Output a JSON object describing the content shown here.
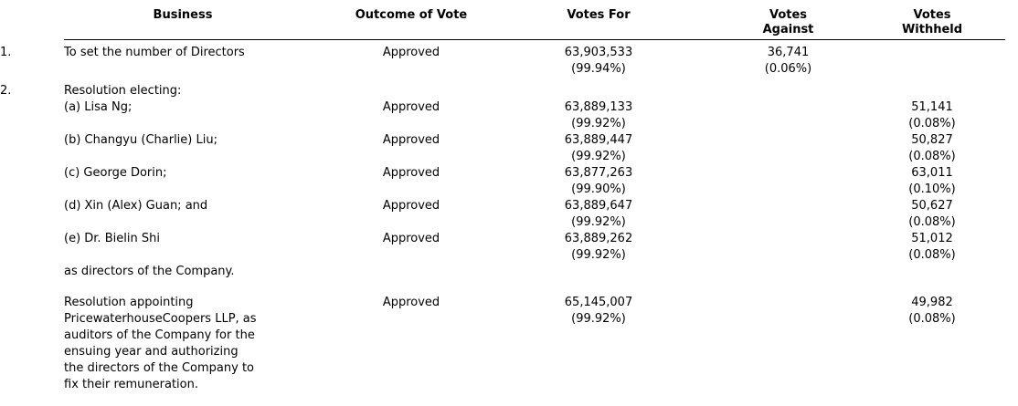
{
  "document": {
    "columns": {
      "business": "Business",
      "outcome": "Outcome of Vote",
      "votes_for": "Votes For",
      "votes_against": "Votes\nAgainst",
      "votes_withheld": "Votes\nWithheld"
    },
    "rows": [
      {
        "num": "1.",
        "business": "To set the number of Directors",
        "outcome": "Approved",
        "votes_for": "63,903,533\n(99.94%)",
        "votes_against": "36,741\n(0.06%)",
        "votes_withheld": ""
      },
      {
        "num": "2.",
        "business": "Resolution electing:",
        "outcome": "",
        "votes_for": "",
        "votes_against": "",
        "votes_withheld": ""
      },
      {
        "num": "",
        "business": "(a) Lisa Ng;",
        "outcome": "Approved",
        "votes_for": "63,889,133\n(99.92%)",
        "votes_against": "",
        "votes_withheld": "51,141\n(0.08%)"
      },
      {
        "num": "",
        "business": "(b) Changyu (Charlie) Liu;",
        "outcome": "Approved",
        "votes_for": "63,889,447\n(99.92%)",
        "votes_against": "",
        "votes_withheld": "50,827\n(0.08%)"
      },
      {
        "num": "",
        "business": "(c) George Dorin;",
        "outcome": "Approved",
        "votes_for": "63,877,263\n(99.90%)",
        "votes_against": "",
        "votes_withheld": "63,011\n(0.10%)"
      },
      {
        "num": "",
        "business": "(d) Xin (Alex) Guan; and",
        "outcome": "Approved",
        "votes_for": "63,889,647\n(99.92%)",
        "votes_against": "",
        "votes_withheld": "50,627\n(0.08%)"
      },
      {
        "num": "",
        "business": "(e) Dr. Bielin Shi",
        "outcome": "Approved",
        "votes_for": "63,889,262\n(99.92%)",
        "votes_against": "",
        "votes_withheld": "51,012\n(0.08%)"
      },
      {
        "num": "",
        "business": "as directors of the Company.",
        "outcome": "",
        "votes_for": "",
        "votes_against": "",
        "votes_withheld": ""
      },
      {
        "num": "",
        "business": "Resolution appointing\nPricewaterhouseCoopers LLP, as\nauditors of the Company for the\nensuing year and authorizing\nthe directors of the Company to\nfix their remuneration.",
        "outcome": "Approved",
        "votes_for": "65,145,007\n(99.92%)",
        "votes_against": "",
        "votes_withheld": "49,982\n(0.08%)"
      }
    ]
  }
}
